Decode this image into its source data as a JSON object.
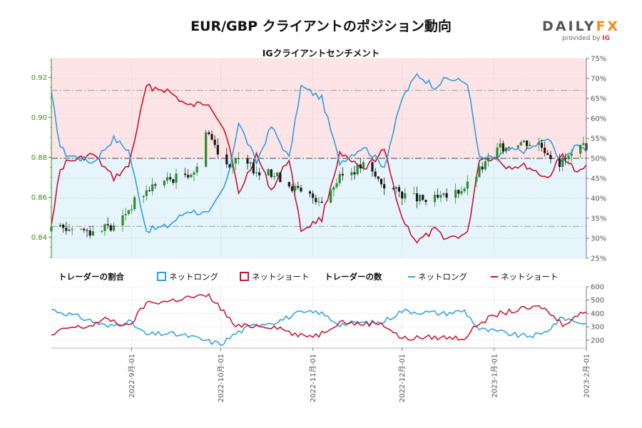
{
  "header": {
    "title": "EUR/GBP クライアントのポジション動向",
    "subtitle": "IGクライアントセンチメント"
  },
  "logo": {
    "main_a": "DAILY",
    "main_b": "FX",
    "sub_text": "provided by ",
    "sub_brand": "IG"
  },
  "legend": {
    "ratio_header": "トレーダーの割合",
    "ratio_long": "ネットロング",
    "ratio_short": "ネットショート",
    "count_header": "トレーダーの数",
    "count_long": "ネットロング",
    "count_short": "ネットショート"
  },
  "colors": {
    "long": "#2a9fe0",
    "short": "#c8102e",
    "long_fill": "#e6f4fc",
    "short_fill": "#fde4e6",
    "candle_up": "#2e8b2e",
    "candle_down": "#1a1a1a",
    "axis_left": "#3a8a1a"
  },
  "chart_data": [
    {
      "type": "candlestick",
      "title": "IGクライアントセンチメント",
      "pair": "EUR/GBP",
      "y_left_ticks": [
        "0.84",
        "0.86",
        "0.88",
        "0.90",
        "0.92"
      ],
      "y_left_range": [
        0.8295,
        0.9295
      ],
      "y_right_ticks": [
        "25%",
        "30%",
        "35%",
        "40%",
        "45%",
        "50%",
        "55%",
        "60%",
        "65%",
        "70%",
        "75%"
      ],
      "y_right_range": [
        25,
        75
      ],
      "reference_levels_pct": [
        50,
        33,
        67
      ],
      "x_start": "2022-08-05",
      "x_end": "2023-02-01",
      "date_ticks": [
        "2022-09-01",
        "2022-10-01",
        "2022-11-01",
        "2022-12-01",
        "2023-01-01",
        "2023-02-01"
      ],
      "date_tick_labels": [
        "2022-9月-01",
        "2022-10月-01",
        "2022-11月-01",
        "2022-12月-01",
        "2023-1月-01",
        "2023-2月-01"
      ],
      "close_keyframes": [
        [
          "2022-08-05",
          0.843
        ],
        [
          "2022-08-12",
          0.845
        ],
        [
          "2022-08-19",
          0.843
        ],
        [
          "2022-08-26",
          0.845
        ],
        [
          "2022-09-02",
          0.858
        ],
        [
          "2022-09-09",
          0.867
        ],
        [
          "2022-09-16",
          0.87
        ],
        [
          "2022-09-23",
          0.874
        ],
        [
          "2022-09-26",
          0.895
        ],
        [
          "2022-09-29",
          0.886
        ],
        [
          "2022-10-03",
          0.877
        ],
        [
          "2022-10-07",
          0.878
        ],
        [
          "2022-10-14",
          0.873
        ],
        [
          "2022-10-21",
          0.87
        ],
        [
          "2022-10-28",
          0.862
        ],
        [
          "2022-11-04",
          0.859
        ],
        [
          "2022-11-11",
          0.871
        ],
        [
          "2022-11-18",
          0.876
        ],
        [
          "2022-11-25",
          0.866
        ],
        [
          "2022-12-02",
          0.861
        ],
        [
          "2022-12-09",
          0.858
        ],
        [
          "2022-12-16",
          0.86
        ],
        [
          "2022-12-23",
          0.866
        ],
        [
          "2023-01-02",
          0.884
        ],
        [
          "2023-01-09",
          0.888
        ],
        [
          "2023-01-16",
          0.887
        ],
        [
          "2023-01-23",
          0.877
        ],
        [
          "2023-02-01",
          0.886
        ]
      ],
      "long_pct_keyframes": [
        [
          "2022-08-05",
          66
        ],
        [
          "2022-08-08",
          53
        ],
        [
          "2022-08-10",
          51
        ],
        [
          "2022-08-15",
          50
        ],
        [
          "2022-08-19",
          49
        ],
        [
          "2022-08-26",
          55
        ],
        [
          "2022-08-31",
          52
        ],
        [
          "2022-09-06",
          32
        ],
        [
          "2022-09-13",
          33
        ],
        [
          "2022-09-20",
          37
        ],
        [
          "2022-09-27",
          36
        ],
        [
          "2022-10-03",
          44
        ],
        [
          "2022-10-07",
          59
        ],
        [
          "2022-10-13",
          49
        ],
        [
          "2022-10-18",
          58
        ],
        [
          "2022-10-24",
          50
        ],
        [
          "2022-10-28",
          68
        ],
        [
          "2022-11-04",
          65
        ],
        [
          "2022-11-10",
          49
        ],
        [
          "2022-11-18",
          53
        ],
        [
          "2022-11-25",
          48
        ],
        [
          "2022-12-01",
          65
        ],
        [
          "2022-12-06",
          71
        ],
        [
          "2022-12-12",
          68
        ],
        [
          "2022-12-16",
          70
        ],
        [
          "2022-12-23",
          69
        ],
        [
          "2022-12-27",
          50
        ],
        [
          "2023-01-02",
          50
        ],
        [
          "2023-01-05",
          52
        ],
        [
          "2023-01-12",
          52
        ],
        [
          "2023-01-19",
          55
        ],
        [
          "2023-01-24",
          49
        ],
        [
          "2023-01-29",
          54
        ],
        [
          "2023-02-01",
          52
        ]
      ],
      "short_pct_keyframes": [
        [
          "2022-08-05",
          34
        ],
        [
          "2022-08-08",
          47
        ],
        [
          "2022-08-10",
          49
        ],
        [
          "2022-08-15",
          50
        ],
        [
          "2022-08-19",
          51
        ],
        [
          "2022-08-26",
          45
        ],
        [
          "2022-08-31",
          48
        ],
        [
          "2022-09-06",
          68
        ],
        [
          "2022-09-13",
          67
        ],
        [
          "2022-09-20",
          63
        ],
        [
          "2022-09-27",
          64
        ],
        [
          "2022-10-03",
          56
        ],
        [
          "2022-10-07",
          41
        ],
        [
          "2022-10-13",
          51
        ],
        [
          "2022-10-18",
          42
        ],
        [
          "2022-10-24",
          50
        ],
        [
          "2022-10-28",
          32
        ],
        [
          "2022-11-04",
          35
        ],
        [
          "2022-11-10",
          51
        ],
        [
          "2022-11-18",
          47
        ],
        [
          "2022-11-25",
          52
        ],
        [
          "2022-12-01",
          35
        ],
        [
          "2022-12-06",
          29
        ],
        [
          "2022-12-12",
          32
        ],
        [
          "2022-12-16",
          30
        ],
        [
          "2022-12-23",
          31
        ],
        [
          "2022-12-27",
          50
        ],
        [
          "2023-01-02",
          50
        ],
        [
          "2023-01-05",
          48
        ],
        [
          "2023-01-12",
          48
        ],
        [
          "2023-01-19",
          45
        ],
        [
          "2023-01-24",
          51
        ],
        [
          "2023-01-29",
          46
        ],
        [
          "2023-02-01",
          48
        ]
      ]
    },
    {
      "type": "line",
      "y_ticks": [
        "200",
        "300",
        "400",
        "500",
        "600"
      ],
      "y_range": [
        140,
        600
      ],
      "series": [
        {
          "name": "ネットロング",
          "keyframes": [
            [
              "2022-08-05",
              430
            ],
            [
              "2022-08-10",
              400
            ],
            [
              "2022-08-17",
              355
            ],
            [
              "2022-08-24",
              300
            ],
            [
              "2022-08-31",
              340
            ],
            [
              "2022-09-06",
              240
            ],
            [
              "2022-09-13",
              250
            ],
            [
              "2022-09-20",
              230
            ],
            [
              "2022-09-27",
              190
            ],
            [
              "2022-10-01",
              170
            ],
            [
              "2022-10-06",
              250
            ],
            [
              "2022-10-13",
              320
            ],
            [
              "2022-10-20",
              340
            ],
            [
              "2022-10-27",
              400
            ],
            [
              "2022-11-03",
              410
            ],
            [
              "2022-11-10",
              320
            ],
            [
              "2022-11-17",
              330
            ],
            [
              "2022-11-24",
              330
            ],
            [
              "2022-12-01",
              420
            ],
            [
              "2022-12-08",
              410
            ],
            [
              "2022-12-15",
              400
            ],
            [
              "2022-12-22",
              420
            ],
            [
              "2022-12-27",
              280
            ],
            [
              "2023-01-03",
              260
            ],
            [
              "2023-01-10",
              230
            ],
            [
              "2023-01-17",
              240
            ],
            [
              "2023-01-24",
              370
            ],
            [
              "2023-02-01",
              320
            ]
          ]
        },
        {
          "name": "ネットショート",
          "keyframes": [
            [
              "2022-08-05",
              230
            ],
            [
              "2022-08-10",
              290
            ],
            [
              "2022-08-17",
              300
            ],
            [
              "2022-08-24",
              360
            ],
            [
              "2022-08-31",
              300
            ],
            [
              "2022-09-06",
              480
            ],
            [
              "2022-09-13",
              490
            ],
            [
              "2022-09-20",
              520
            ],
            [
              "2022-09-27",
              530
            ],
            [
              "2022-10-01",
              440
            ],
            [
              "2022-10-06",
              300
            ],
            [
              "2022-10-13",
              310
            ],
            [
              "2022-10-20",
              300
            ],
            [
              "2022-10-27",
              230
            ],
            [
              "2022-11-03",
              240
            ],
            [
              "2022-11-10",
              340
            ],
            [
              "2022-11-17",
              320
            ],
            [
              "2022-11-24",
              330
            ],
            [
              "2022-12-01",
              210
            ],
            [
              "2022-12-08",
              220
            ],
            [
              "2022-12-15",
              220
            ],
            [
              "2022-12-22",
              215
            ],
            [
              "2022-12-27",
              330
            ],
            [
              "2023-01-03",
              400
            ],
            [
              "2023-01-10",
              430
            ],
            [
              "2023-01-17",
              450
            ],
            [
              "2023-01-24",
              320
            ],
            [
              "2023-02-01",
              420
            ]
          ]
        }
      ]
    }
  ]
}
